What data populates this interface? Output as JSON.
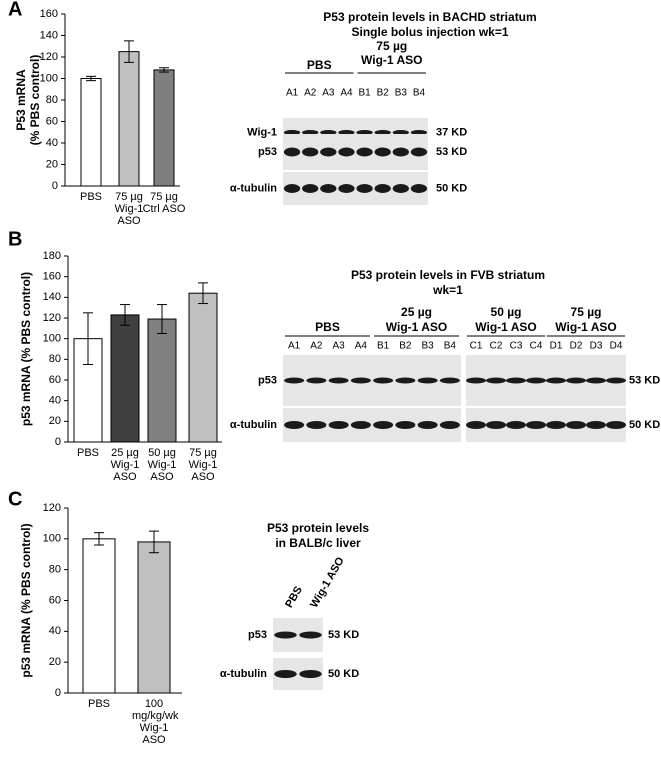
{
  "chart_data": [
    {
      "type": "bar",
      "label": "A",
      "ylabel": [
        "P53 mRNA",
        "(% PBS control)"
      ],
      "categories": [
        "PBS",
        "75 µg Wig-1 ASO",
        "75 µg Ctrl ASO"
      ],
      "values": [
        100,
        125,
        108
      ],
      "errors": [
        2,
        10,
        2
      ],
      "colors": [
        "#ffffff",
        "#c0c0c0",
        "#7f7f7f"
      ],
      "ylim": [
        0,
        160
      ],
      "yticks": [
        0,
        20,
        40,
        60,
        80,
        100,
        120,
        140,
        160
      ]
    },
    {
      "type": "bar",
      "label": "B",
      "ylabel": "p53 mRNA (% PBS control)",
      "categories": [
        "PBS",
        "25 µg Wig-1 ASO",
        "50 µg Wig-1 ASO",
        "75 µg Wig-1 ASO"
      ],
      "values": [
        100,
        123,
        119,
        144
      ],
      "errors": [
        25,
        10,
        14,
        10
      ],
      "colors": [
        "#ffffff",
        "#404040",
        "#808080",
        "#c0c0c0"
      ],
      "ylim": [
        0,
        180
      ],
      "yticks": [
        0,
        20,
        40,
        60,
        80,
        100,
        120,
        140,
        160,
        180
      ]
    },
    {
      "type": "bar",
      "label": "C",
      "ylabel": "p53 mRNA (% PBS control)",
      "categories": [
        "PBS",
        "100 mg/kg/wk Wig-1 ASO"
      ],
      "values": [
        100,
        98
      ],
      "errors": [
        4,
        7
      ],
      "colors": [
        "#ffffff",
        "#c0c0c0"
      ],
      "ylim": [
        0,
        120
      ],
      "yticks": [
        0,
        20,
        40,
        60,
        80,
        100,
        120
      ]
    }
  ],
  "blots": [
    {
      "title": [
        "P53 protein levels in BACHD striatum",
        "Single bolus injection wk=1"
      ],
      "groups": [
        [
          "PBS"
        ],
        [
          "75 µg",
          "Wig-1 ASO"
        ]
      ],
      "lanes": [
        "A1",
        "A2",
        "A3",
        "A4",
        "B1",
        "B2",
        "B3",
        "B4"
      ],
      "rows": [
        {
          "label": "Wig-1",
          "size": "37 KD"
        },
        {
          "label": "p53",
          "size": "53 KD"
        },
        {
          "label": "α-tubulin",
          "size": "50 KD"
        }
      ]
    },
    {
      "title": [
        "P53 protein levels in FVB striatum",
        "wk=1"
      ],
      "groups": [
        [
          "PBS"
        ],
        [
          "25 µg",
          "Wig-1 ASO"
        ],
        [
          "50 µg",
          "Wig-1 ASO"
        ],
        [
          "75 µg",
          "Wig-1 ASO"
        ]
      ],
      "lanes": [
        "A1",
        "A2",
        "A3",
        "A4",
        "B1",
        "B2",
        "B3",
        "B4",
        "C1",
        "C2",
        "C3",
        "C4",
        "D1",
        "D2",
        "D3",
        "D4"
      ],
      "rows": [
        {
          "label": "p53",
          "size": "53 KD"
        },
        {
          "label": "α-tubulin",
          "size": "50 KD"
        }
      ]
    },
    {
      "title": [
        "P53 protein levels",
        "in BALB/c liver"
      ],
      "groups": [],
      "lanes": [
        "PBS",
        "Wig-1 ASO"
      ],
      "rows": [
        {
          "label": "p53",
          "size": "53 KD"
        },
        {
          "label": "α-tubulin",
          "size": "50 KD"
        }
      ]
    }
  ]
}
